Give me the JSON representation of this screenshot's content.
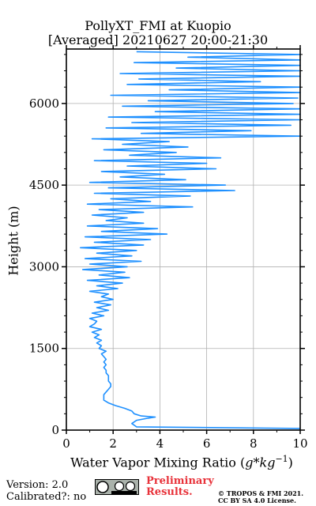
{
  "chart_data": {
    "type": "line",
    "title_line1": "PollyXT_FMI at Kuopio",
    "title_line2": "[Averaged] 20210627 20:00-21:30",
    "xlabel_text": "Water Vapor Mixing Ratio (",
    "xlabel_math": "g*kg",
    "xlabel_exp": "−1",
    "xlabel_close": ")",
    "ylabel": "Height (m)",
    "xlim": [
      0,
      10
    ],
    "ylim": [
      0,
      7000
    ],
    "xticks": [
      0,
      2,
      4,
      6,
      8,
      10
    ],
    "yticks": [
      0,
      1500,
      3000,
      4500,
      6000
    ],
    "grid": true,
    "series_color": "#1e90ff",
    "profile": [
      [
        10,
        30
      ],
      [
        3.0,
        60
      ],
      [
        2.8,
        120
      ],
      [
        3.0,
        180
      ],
      [
        3.5,
        220
      ],
      [
        3.8,
        240
      ],
      [
        3.2,
        260
      ],
      [
        2.9,
        300
      ],
      [
        2.8,
        350
      ],
      [
        2.5,
        400
      ],
      [
        2.1,
        450
      ],
      [
        1.8,
        500
      ],
      [
        1.6,
        550
      ],
      [
        1.6,
        600
      ],
      [
        1.6,
        650
      ],
      [
        1.7,
        700
      ],
      [
        1.8,
        750
      ],
      [
        1.9,
        800
      ],
      [
        1.9,
        850
      ],
      [
        1.8,
        900
      ],
      [
        1.8,
        950
      ],
      [
        1.8,
        1000
      ],
      [
        1.7,
        1050
      ],
      [
        1.7,
        1100
      ],
      [
        1.6,
        1150
      ],
      [
        1.7,
        1200
      ],
      [
        1.6,
        1250
      ],
      [
        1.7,
        1300
      ],
      [
        1.6,
        1350
      ],
      [
        1.5,
        1400
      ],
      [
        1.7,
        1450
      ],
      [
        1.4,
        1500
      ],
      [
        1.5,
        1550
      ],
      [
        1.3,
        1600
      ],
      [
        1.5,
        1650
      ],
      [
        1.2,
        1700
      ],
      [
        1.4,
        1750
      ],
      [
        1.1,
        1800
      ],
      [
        1.5,
        1850
      ],
      [
        1.0,
        1900
      ],
      [
        1.2,
        1950
      ],
      [
        1.3,
        2000
      ],
      [
        1.0,
        2050
      ],
      [
        1.6,
        2100
      ],
      [
        1.1,
        2150
      ],
      [
        1.8,
        2200
      ],
      [
        1.3,
        2250
      ],
      [
        1.9,
        2300
      ],
      [
        1.2,
        2350
      ],
      [
        2.0,
        2400
      ],
      [
        1.5,
        2450
      ],
      [
        1.8,
        2500
      ],
      [
        1.0,
        2550
      ],
      [
        2.2,
        2600
      ],
      [
        1.3,
        2650
      ],
      [
        2.4,
        2700
      ],
      [
        0.9,
        2750
      ],
      [
        2.7,
        2800
      ],
      [
        1.4,
        2850
      ],
      [
        2.5,
        2900
      ],
      [
        0.7,
        2950
      ],
      [
        2.6,
        3000
      ],
      [
        1.0,
        3050
      ],
      [
        3.2,
        3100
      ],
      [
        0.8,
        3150
      ],
      [
        2.8,
        3200
      ],
      [
        1.3,
        3250
      ],
      [
        3.0,
        3300
      ],
      [
        0.6,
        3350
      ],
      [
        3.3,
        3400
      ],
      [
        1.2,
        3450
      ],
      [
        3.6,
        3500
      ],
      [
        0.8,
        3550
      ],
      [
        4.3,
        3600
      ],
      [
        1.5,
        3650
      ],
      [
        3.9,
        3700
      ],
      [
        0.9,
        3750
      ],
      [
        3.3,
        3800
      ],
      [
        1.7,
        3850
      ],
      [
        2.6,
        3900
      ],
      [
        1.1,
        3950
      ],
      [
        3.3,
        4000
      ],
      [
        1.4,
        4050
      ],
      [
        5.4,
        4100
      ],
      [
        0.9,
        4150
      ],
      [
        3.6,
        4200
      ],
      [
        1.9,
        4250
      ],
      [
        5.3,
        4300
      ],
      [
        1.2,
        4350
      ],
      [
        7.2,
        4400
      ],
      [
        1.8,
        4450
      ],
      [
        6.8,
        4500
      ],
      [
        1.0,
        4550
      ],
      [
        5.1,
        4600
      ],
      [
        2.3,
        4650
      ],
      [
        4.2,
        4700
      ],
      [
        1.5,
        4750
      ],
      [
        6.4,
        4800
      ],
      [
        2.6,
        4850
      ],
      [
        6.0,
        4900
      ],
      [
        1.2,
        4950
      ],
      [
        6.6,
        5000
      ],
      [
        2.7,
        5050
      ],
      [
        4.7,
        5100
      ],
      [
        1.6,
        5150
      ],
      [
        5.2,
        5200
      ],
      [
        2.4,
        5250
      ],
      [
        4.4,
        5300
      ],
      [
        1.1,
        5350
      ],
      [
        10,
        5400
      ],
      [
        3.2,
        5450
      ],
      [
        7.9,
        5500
      ],
      [
        1.7,
        5550
      ],
      [
        9.6,
        5600
      ],
      [
        2.8,
        5650
      ],
      [
        10,
        5700
      ],
      [
        1.8,
        5750
      ],
      [
        10,
        5800
      ],
      [
        3.8,
        5850
      ],
      [
        10,
        5900
      ],
      [
        2.4,
        5950
      ],
      [
        9.7,
        6000
      ],
      [
        3.5,
        6050
      ],
      [
        9.9,
        6100
      ],
      [
        1.9,
        6150
      ],
      [
        10,
        6200
      ],
      [
        4.4,
        6250
      ],
      [
        10,
        6300
      ],
      [
        2.6,
        6350
      ],
      [
        8.3,
        6400
      ],
      [
        3.1,
        6450
      ],
      [
        10,
        6500
      ],
      [
        2.3,
        6550
      ],
      [
        10,
        6600
      ],
      [
        4.7,
        6650
      ],
      [
        10,
        6700
      ],
      [
        2.9,
        6750
      ],
      [
        10,
        6800
      ],
      [
        5.2,
        6850
      ],
      [
        10,
        6900
      ],
      [
        3.0,
        6950
      ]
    ]
  },
  "footer": {
    "version": "Version: 2.0",
    "calibrated": "Calibrated?: no",
    "preliminary": "Preliminary Results.",
    "copyright_line1": "© TROPOS & FMI 2021.",
    "copyright_line2": "CC BY SA 4.0 License."
  }
}
